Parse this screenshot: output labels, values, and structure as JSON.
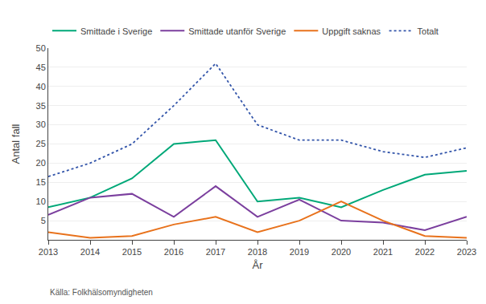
{
  "chart_data": {
    "type": "line",
    "xlabel": "År",
    "ylabel": "Antal fall",
    "caption": "Källa: Folkhälsomyndigheten",
    "x": [
      2013,
      2014,
      2015,
      2016,
      2017,
      2018,
      2019,
      2020,
      2021,
      2022,
      2023
    ],
    "series": [
      {
        "name": "Smittade i Sverige",
        "color": "#00a878",
        "line_style": "solid",
        "values": [
          8.5,
          11,
          16,
          25,
          26,
          10,
          11,
          8.5,
          13,
          17,
          18
        ]
      },
      {
        "name": "Smittade utanför Sverige",
        "color": "#7b3f9e",
        "line_style": "solid",
        "values": [
          6.5,
          11,
          12,
          6,
          14,
          6,
          10.5,
          5,
          4.5,
          2.5,
          6
        ]
      },
      {
        "name": "Uppgift saknas",
        "color": "#e8721c",
        "line_style": "solid",
        "values": [
          2,
          0.5,
          1,
          4,
          6,
          2,
          5,
          10,
          5,
          1,
          0.5
        ]
      },
      {
        "name": "Totalt",
        "color": "#3355aa",
        "line_style": "dotted",
        "values": [
          16.5,
          20,
          25,
          35,
          46,
          30,
          26,
          26,
          23,
          21.5,
          24
        ]
      }
    ],
    "xlim": [
      2013,
      2023
    ],
    "xticks": [
      2013,
      2014,
      2015,
      2016,
      2017,
      2018,
      2019,
      2020,
      2021,
      2022,
      2023
    ],
    "ylim": [
      0,
      50
    ],
    "yticks": [
      5,
      10,
      15,
      20,
      25,
      30,
      35,
      40,
      45,
      50
    ],
    "grid": "y",
    "legend": "top"
  }
}
